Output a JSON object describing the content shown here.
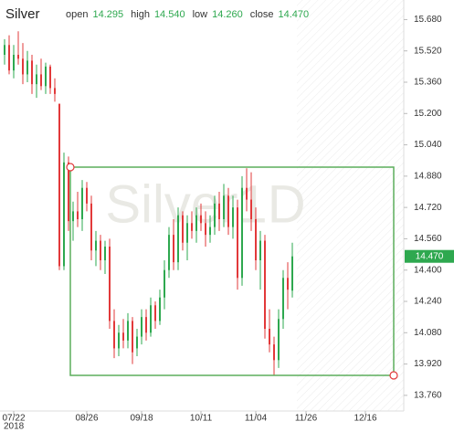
{
  "chart_data": {
    "type": "candlestick",
    "symbol": "Silver",
    "ohlc_names": [
      "open",
      "high",
      "low",
      "close"
    ],
    "ohlc_values": [
      "14.295",
      "14.540",
      "14.260",
      "14.470"
    ],
    "watermark": "Silver1D",
    "year_label": "2018",
    "up_color": "#2ea84f",
    "down_color": "#e2393a",
    "categories": [
      null,
      null,
      "07/22",
      null,
      null,
      null,
      null,
      null,
      null,
      null,
      null,
      null,
      null,
      null,
      null,
      null,
      null,
      null,
      "08/26",
      null,
      null,
      null,
      null,
      null,
      null,
      null,
      null,
      null,
      null,
      null,
      "09/18",
      null,
      null,
      null,
      null,
      null,
      null,
      null,
      null,
      null,
      null,
      null,
      null,
      "10/11",
      null,
      null,
      null,
      null,
      null,
      null,
      null,
      null,
      null,
      null,
      null,
      "11/04",
      null,
      null,
      null,
      null,
      null,
      null,
      null,
      null,
      null,
      null,
      "11/26",
      null,
      null,
      null,
      null,
      null,
      null,
      null,
      null,
      null,
      null,
      null,
      null,
      "12/16",
      null,
      null,
      null,
      null,
      null,
      null,
      null,
      null
    ],
    "open": [
      15.5,
      15.55,
      15.42,
      15.5,
      15.48,
      15.4,
      15.47,
      15.35,
      15.4,
      15.34,
      15.44,
      15.33,
      15.25,
      14.42,
      14.95,
      14.65,
      14.7,
      14.66,
      14.82,
      14.74,
      14.5,
      14.55,
      14.45,
      14.52,
      14.14,
      14.0,
      14.08,
      14.04,
      14.14,
      14.0,
      14.06,
      14.16,
      14.08,
      14.22,
      14.14,
      14.26,
      14.4,
      14.58,
      14.44,
      14.68,
      14.54,
      14.64,
      14.6,
      14.68,
      14.64,
      14.58,
      14.62,
      14.74,
      14.66,
      14.78,
      14.62,
      14.72,
      14.36,
      14.82,
      14.76,
      14.66,
      14.45,
      14.55,
      14.1,
      14.02,
      13.94,
      14.15,
      14.36,
      14.295,
      null,
      null,
      null,
      null,
      null,
      null,
      null,
      null,
      null,
      null,
      null,
      null,
      null,
      null,
      null,
      null,
      null,
      null,
      null,
      null,
      null,
      null,
      null,
      null
    ],
    "high": [
      15.58,
      15.6,
      15.55,
      15.62,
      15.56,
      15.52,
      15.5,
      15.45,
      15.48,
      15.46,
      15.45,
      15.38,
      15.25,
      15.0,
      14.98,
      14.75,
      14.8,
      14.86,
      14.85,
      14.78,
      14.6,
      14.58,
      14.55,
      14.56,
      14.2,
      14.12,
      14.15,
      14.18,
      14.16,
      14.1,
      14.2,
      14.2,
      14.26,
      14.24,
      14.3,
      14.45,
      14.62,
      14.66,
      14.72,
      14.7,
      14.68,
      14.7,
      14.72,
      14.74,
      14.7,
      14.68,
      14.78,
      14.8,
      14.84,
      14.82,
      14.78,
      14.76,
      14.88,
      14.92,
      14.9,
      14.72,
      14.6,
      14.58,
      14.2,
      14.06,
      14.2,
      14.4,
      14.44,
      14.54,
      null,
      null,
      null,
      null,
      null,
      null,
      null,
      null,
      null,
      null,
      null,
      null,
      null,
      null,
      null,
      null,
      null,
      null,
      null,
      null,
      null,
      null,
      null,
      null
    ],
    "low": [
      15.45,
      15.4,
      15.38,
      15.45,
      15.35,
      15.36,
      15.3,
      15.28,
      15.32,
      15.3,
      15.3,
      15.26,
      14.4,
      14.4,
      14.6,
      14.55,
      14.62,
      14.6,
      14.7,
      14.45,
      14.42,
      14.4,
      14.38,
      14.1,
      13.95,
      13.96,
      14.0,
      14.0,
      13.92,
      13.96,
      14.02,
      14.04,
      14.06,
      14.1,
      14.12,
      14.2,
      14.36,
      14.4,
      14.4,
      14.5,
      14.45,
      14.56,
      14.54,
      14.6,
      14.52,
      14.54,
      14.58,
      14.6,
      14.62,
      14.58,
      14.56,
      14.3,
      14.32,
      14.7,
      14.6,
      14.4,
      14.3,
      14.05,
      13.98,
      13.86,
      13.9,
      14.1,
      14.2,
      14.26,
      null,
      null,
      null,
      null,
      null,
      null,
      null,
      null,
      null,
      null,
      null,
      null,
      null,
      null,
      null,
      null,
      null,
      null,
      null,
      null,
      null,
      null,
      null,
      null
    ],
    "close": [
      15.55,
      15.42,
      15.5,
      15.48,
      15.4,
      15.47,
      15.35,
      15.4,
      15.34,
      15.44,
      15.33,
      15.3,
      14.42,
      14.95,
      14.65,
      14.7,
      14.66,
      14.82,
      14.74,
      14.5,
      14.55,
      14.45,
      14.52,
      14.14,
      14.0,
      14.08,
      14.04,
      14.14,
      13.98,
      14.06,
      14.16,
      14.08,
      14.22,
      14.14,
      14.26,
      14.4,
      14.58,
      14.44,
      14.68,
      14.54,
      14.64,
      14.6,
      14.68,
      14.64,
      14.58,
      14.62,
      14.74,
      14.66,
      14.78,
      14.62,
      14.72,
      14.36,
      14.82,
      14.76,
      14.66,
      14.45,
      14.55,
      14.1,
      14.02,
      13.94,
      14.15,
      14.36,
      14.3,
      14.47,
      null,
      null,
      null,
      null,
      null,
      null,
      null,
      null,
      null,
      null,
      null,
      null,
      null,
      null,
      null,
      null,
      null,
      null,
      null,
      null,
      null,
      null,
      null,
      null
    ],
    "last_price": {
      "value": 14.47,
      "label": "14.470"
    },
    "ylim": [
      13.68,
      15.78
    ],
    "yticks": [
      {
        "value": 15.68,
        "label": "15.680"
      },
      {
        "value": 15.52,
        "label": "15.520"
      },
      {
        "value": 15.36,
        "label": "15.360"
      },
      {
        "value": 15.2,
        "label": "15.200"
      },
      {
        "value": 15.04,
        "label": "15.040"
      },
      {
        "value": 14.88,
        "label": "14.880"
      },
      {
        "value": 14.72,
        "label": "14.720"
      },
      {
        "value": 14.56,
        "label": "14.560"
      },
      {
        "value": 14.4,
        "label": "14.400"
      },
      {
        "value": 14.24,
        "label": "14.240"
      },
      {
        "value": 14.08,
        "label": "14.080"
      },
      {
        "value": 13.92,
        "label": "13.920"
      },
      {
        "value": 13.76,
        "label": "13.760"
      }
    ]
  }
}
